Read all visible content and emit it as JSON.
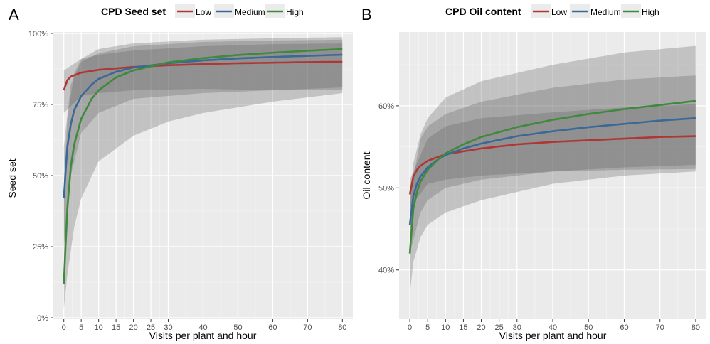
{
  "chart_data": [
    {
      "type": "line",
      "panel": "A",
      "legend_title": "CPD Seed set",
      "legend_position": "top",
      "xlabel": "Visits per plant and hour",
      "ylabel": "Seed set",
      "xlim": [
        -3,
        83
      ],
      "ylim": [
        -0.005,
        1.005
      ],
      "x_ticks": [
        0,
        5,
        10,
        15,
        20,
        25,
        30,
        40,
        50,
        60,
        70,
        80
      ],
      "y_ticks": [
        0,
        0.25,
        0.5,
        0.75,
        1.0
      ],
      "y_tick_labels": [
        "0%",
        "25%",
        "50%",
        "75%",
        "100%"
      ],
      "grid": true,
      "series": [
        {
          "name": "Low",
          "color": "#b03636",
          "points": [
            [
              0,
              0.8
            ],
            [
              1,
              0.835
            ],
            [
              2,
              0.848
            ],
            [
              5,
              0.862
            ],
            [
              10,
              0.872
            ],
            [
              20,
              0.882
            ],
            [
              30,
              0.888
            ],
            [
              40,
              0.892
            ],
            [
              50,
              0.895
            ],
            [
              60,
              0.897
            ],
            [
              70,
              0.899
            ],
            [
              80,
              0.9
            ]
          ],
          "lower": [
            [
              0,
              0.72
            ],
            [
              5,
              0.78
            ],
            [
              10,
              0.79
            ],
            [
              20,
              0.8
            ],
            [
              40,
              0.805
            ],
            [
              60,
              0.8
            ],
            [
              80,
              0.8
            ]
          ],
          "upper": [
            [
              0,
              0.87
            ],
            [
              5,
              0.91
            ],
            [
              10,
              0.925
            ],
            [
              20,
              0.94
            ],
            [
              40,
              0.955
            ],
            [
              60,
              0.962
            ],
            [
              80,
              0.965
            ]
          ]
        },
        {
          "name": "Medium",
          "color": "#3a6897",
          "points": [
            [
              0,
              0.42
            ],
            [
              1,
              0.6
            ],
            [
              2,
              0.68
            ],
            [
              3,
              0.73
            ],
            [
              5,
              0.78
            ],
            [
              8,
              0.82
            ],
            [
              10,
              0.84
            ],
            [
              15,
              0.865
            ],
            [
              20,
              0.88
            ],
            [
              30,
              0.895
            ],
            [
              40,
              0.905
            ],
            [
              50,
              0.912
            ],
            [
              60,
              0.917
            ],
            [
              70,
              0.921
            ],
            [
              80,
              0.925
            ]
          ],
          "lower": [
            [
              0,
              0.25
            ],
            [
              2,
              0.5
            ],
            [
              5,
              0.65
            ],
            [
              10,
              0.72
            ],
            [
              20,
              0.77
            ],
            [
              40,
              0.79
            ],
            [
              60,
              0.8
            ],
            [
              80,
              0.81
            ]
          ],
          "upper": [
            [
              0,
              0.6
            ],
            [
              2,
              0.82
            ],
            [
              5,
              0.9
            ],
            [
              10,
              0.93
            ],
            [
              20,
              0.955
            ],
            [
              40,
              0.97
            ],
            [
              60,
              0.975
            ],
            [
              80,
              0.978
            ]
          ]
        },
        {
          "name": "High",
          "color": "#3d8a3d",
          "points": [
            [
              0,
              0.12
            ],
            [
              1,
              0.38
            ],
            [
              2,
              0.53
            ],
            [
              3,
              0.61
            ],
            [
              5,
              0.7
            ],
            [
              8,
              0.77
            ],
            [
              10,
              0.8
            ],
            [
              15,
              0.845
            ],
            [
              20,
              0.87
            ],
            [
              30,
              0.898
            ],
            [
              40,
              0.913
            ],
            [
              50,
              0.924
            ],
            [
              60,
              0.932
            ],
            [
              70,
              0.939
            ],
            [
              80,
              0.945
            ]
          ],
          "lower": [
            [
              0,
              0.03
            ],
            [
              1,
              0.15
            ],
            [
              3,
              0.32
            ],
            [
              5,
              0.42
            ],
            [
              10,
              0.55
            ],
            [
              20,
              0.64
            ],
            [
              30,
              0.69
            ],
            [
              40,
              0.72
            ],
            [
              60,
              0.76
            ],
            [
              80,
              0.79
            ]
          ],
          "upper": [
            [
              0,
              0.45
            ],
            [
              1,
              0.7
            ],
            [
              3,
              0.86
            ],
            [
              5,
              0.91
            ],
            [
              10,
              0.945
            ],
            [
              20,
              0.965
            ],
            [
              40,
              0.978
            ],
            [
              60,
              0.983
            ],
            [
              80,
              0.987
            ]
          ]
        }
      ]
    },
    {
      "type": "line",
      "panel": "B",
      "legend_title": "CPD Oil content",
      "legend_position": "top",
      "xlabel": "Visits per plant and hour",
      "ylabel": "Oil content",
      "xlim": [
        -3,
        83
      ],
      "ylim": [
        0.34,
        0.69
      ],
      "x_ticks": [
        0,
        5,
        10,
        15,
        20,
        25,
        30,
        40,
        50,
        60,
        70,
        80
      ],
      "y_ticks": [
        0.4,
        0.5,
        0.6
      ],
      "y_tick_labels": [
        "40%",
        "50%",
        "60%"
      ],
      "grid": true,
      "series": [
        {
          "name": "Low",
          "color": "#b03636",
          "points": [
            [
              0,
              0.492
            ],
            [
              1,
              0.514
            ],
            [
              2,
              0.522
            ],
            [
              3,
              0.527
            ],
            [
              5,
              0.533
            ],
            [
              10,
              0.541
            ],
            [
              20,
              0.548
            ],
            [
              30,
              0.553
            ],
            [
              40,
              0.556
            ],
            [
              50,
              0.558
            ],
            [
              60,
              0.56
            ],
            [
              70,
              0.562
            ],
            [
              80,
              0.563
            ]
          ],
          "lower": [
            [
              0,
              0.475
            ],
            [
              5,
              0.505
            ],
            [
              10,
              0.51
            ],
            [
              20,
              0.515
            ],
            [
              40,
              0.52
            ],
            [
              60,
              0.522
            ],
            [
              80,
              0.523
            ]
          ],
          "upper": [
            [
              0,
              0.51
            ],
            [
              5,
              0.56
            ],
            [
              10,
              0.575
            ],
            [
              20,
              0.585
            ],
            [
              40,
              0.592
            ],
            [
              60,
              0.598
            ],
            [
              80,
              0.602
            ]
          ]
        },
        {
          "name": "Medium",
          "color": "#3a6897",
          "points": [
            [
              0,
              0.455
            ],
            [
              1,
              0.49
            ],
            [
              2,
              0.505
            ],
            [
              3,
              0.514
            ],
            [
              5,
              0.525
            ],
            [
              8,
              0.535
            ],
            [
              10,
              0.54
            ],
            [
              15,
              0.548
            ],
            [
              20,
              0.554
            ],
            [
              30,
              0.563
            ],
            [
              40,
              0.569
            ],
            [
              50,
              0.574
            ],
            [
              60,
              0.578
            ],
            [
              70,
              0.582
            ],
            [
              80,
              0.585
            ]
          ],
          "lower": [
            [
              0,
              0.42
            ],
            [
              3,
              0.47
            ],
            [
              5,
              0.485
            ],
            [
              10,
              0.5
            ],
            [
              20,
              0.51
            ],
            [
              40,
              0.52
            ],
            [
              60,
              0.525
            ],
            [
              80,
              0.528
            ]
          ],
          "upper": [
            [
              0,
              0.49
            ],
            [
              3,
              0.56
            ],
            [
              5,
              0.575
            ],
            [
              10,
              0.59
            ],
            [
              20,
              0.605
            ],
            [
              40,
              0.622
            ],
            [
              60,
              0.632
            ],
            [
              80,
              0.637
            ]
          ]
        },
        {
          "name": "High",
          "color": "#3d8a3d",
          "points": [
            [
              0,
              0.42
            ],
            [
              1,
              0.475
            ],
            [
              2,
              0.495
            ],
            [
              3,
              0.508
            ],
            [
              5,
              0.522
            ],
            [
              8,
              0.535
            ],
            [
              10,
              0.542
            ],
            [
              15,
              0.553
            ],
            [
              20,
              0.562
            ],
            [
              30,
              0.574
            ],
            [
              40,
              0.583
            ],
            [
              50,
              0.59
            ],
            [
              60,
              0.596
            ],
            [
              70,
              0.601
            ],
            [
              80,
              0.606
            ]
          ],
          "lower": [
            [
              0,
              0.37
            ],
            [
              1,
              0.41
            ],
            [
              3,
              0.44
            ],
            [
              5,
              0.455
            ],
            [
              10,
              0.47
            ],
            [
              20,
              0.485
            ],
            [
              30,
              0.495
            ],
            [
              40,
              0.505
            ],
            [
              60,
              0.515
            ],
            [
              80,
              0.52
            ]
          ],
          "upper": [
            [
              0,
              0.47
            ],
            [
              1,
              0.53
            ],
            [
              3,
              0.565
            ],
            [
              5,
              0.585
            ],
            [
              10,
              0.61
            ],
            [
              20,
              0.63
            ],
            [
              30,
              0.64
            ],
            [
              40,
              0.65
            ],
            [
              60,
              0.665
            ],
            [
              80,
              0.673
            ]
          ]
        }
      ]
    }
  ]
}
